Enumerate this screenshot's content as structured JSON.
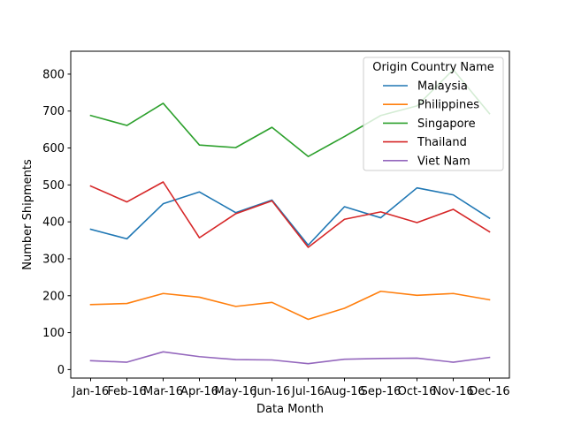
{
  "chart_data": {
    "type": "line",
    "xlabel": "Data Month",
    "ylabel": "Number Shipments",
    "categories": [
      "Jan-16",
      "Feb-16",
      "Mar-16",
      "Apr-16",
      "May-16",
      "Jun-16",
      "Jul-16",
      "Aug-16",
      "Sep-16",
      "Oct-16",
      "Nov-16",
      "Dec-16"
    ],
    "ylim": [
      -23,
      862
    ],
    "yticks": [
      0,
      100,
      200,
      300,
      400,
      500,
      600,
      700,
      800
    ],
    "grid": false,
    "legend": {
      "title": "Origin Country Name",
      "placement": "top-right"
    },
    "series": [
      {
        "name": "Malaysia",
        "color": "#1f77b4",
        "values": [
          380,
          354,
          449,
          481,
          425,
          459,
          337,
          441,
          411,
          492,
          473,
          410
        ]
      },
      {
        "name": "Philippines",
        "color": "#ff7f0e",
        "values": [
          176,
          179,
          206,
          196,
          171,
          182,
          136,
          166,
          212,
          201,
          206,
          189
        ]
      },
      {
        "name": "Singapore",
        "color": "#2ca02c",
        "values": [
          688,
          661,
          721,
          608,
          601,
          656,
          577,
          631,
          688,
          714,
          812,
          693
        ]
      },
      {
        "name": "Thailand",
        "color": "#d62728",
        "values": [
          497,
          454,
          508,
          357,
          422,
          457,
          331,
          407,
          427,
          398,
          434,
          373
        ]
      },
      {
        "name": "Viet Nam",
        "color": "#9467bd",
        "values": [
          24,
          20,
          48,
          35,
          27,
          26,
          16,
          28,
          30,
          31,
          20,
          33
        ]
      }
    ]
  }
}
